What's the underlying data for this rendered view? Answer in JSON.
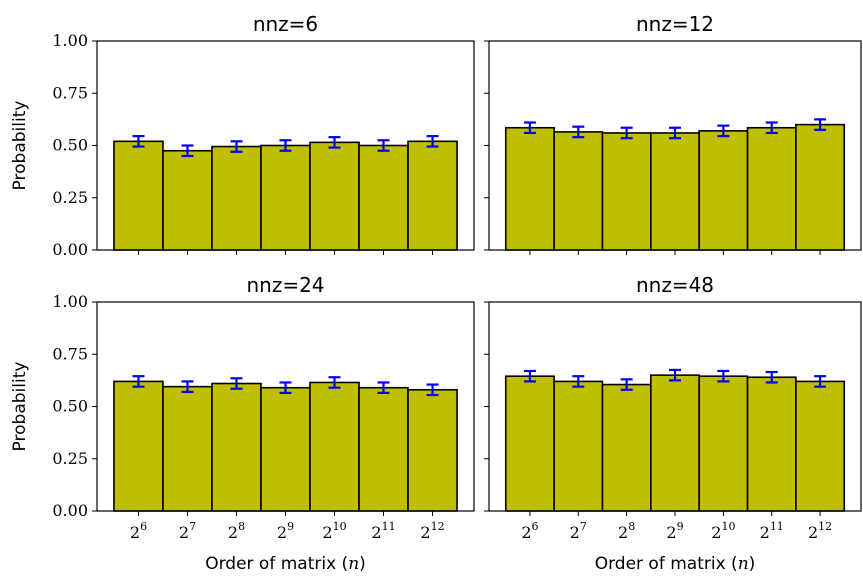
{
  "chart_data": [
    {
      "type": "bar",
      "title": "nnz=6",
      "xlabel": "",
      "ylabel": "Probability",
      "ylim": [
        0,
        1
      ],
      "yticks": [
        "0.00",
        "0.25",
        "0.50",
        "0.75",
        "1.00"
      ],
      "categories": [
        "2^6",
        "2^7",
        "2^8",
        "2^9",
        "2^10",
        "2^11",
        "2^12"
      ],
      "values": [
        0.52,
        0.475,
        0.495,
        0.5,
        0.515,
        0.5,
        0.52
      ],
      "errors": [
        0.025,
        0.025,
        0.025,
        0.025,
        0.025,
        0.025,
        0.025
      ],
      "show_xticklabels": false,
      "show_yticklabels": true
    },
    {
      "type": "bar",
      "title": "nnz=12",
      "xlabel": "",
      "ylabel": "",
      "ylim": [
        0,
        1
      ],
      "yticks": [
        "0.00",
        "0.25",
        "0.50",
        "0.75",
        "1.00"
      ],
      "categories": [
        "2^6",
        "2^7",
        "2^8",
        "2^9",
        "2^10",
        "2^11",
        "2^12"
      ],
      "values": [
        0.585,
        0.565,
        0.56,
        0.56,
        0.57,
        0.585,
        0.6
      ],
      "errors": [
        0.025,
        0.025,
        0.025,
        0.025,
        0.025,
        0.025,
        0.025
      ],
      "show_xticklabels": false,
      "show_yticklabels": false
    },
    {
      "type": "bar",
      "title": "nnz=24",
      "xlabel": "Order of matrix (n)",
      "ylabel": "Probability",
      "ylim": [
        0,
        1
      ],
      "yticks": [
        "0.00",
        "0.25",
        "0.50",
        "0.75",
        "1.00"
      ],
      "categories": [
        "2^6",
        "2^7",
        "2^8",
        "2^9",
        "2^10",
        "2^11",
        "2^12"
      ],
      "values": [
        0.62,
        0.595,
        0.61,
        0.59,
        0.615,
        0.59,
        0.58
      ],
      "errors": [
        0.025,
        0.025,
        0.025,
        0.025,
        0.025,
        0.025,
        0.025
      ],
      "show_xticklabels": true,
      "show_yticklabels": true
    },
    {
      "type": "bar",
      "title": "nnz=48",
      "xlabel": "Order of matrix (n)",
      "ylabel": "",
      "ylim": [
        0,
        1
      ],
      "yticks": [
        "0.00",
        "0.25",
        "0.50",
        "0.75",
        "1.00"
      ],
      "categories": [
        "2^6",
        "2^7",
        "2^8",
        "2^9",
        "2^10",
        "2^11",
        "2^12"
      ],
      "values": [
        0.645,
        0.62,
        0.605,
        0.65,
        0.645,
        0.64,
        0.62
      ],
      "errors": [
        0.025,
        0.025,
        0.025,
        0.025,
        0.025,
        0.025,
        0.025
      ],
      "show_xticklabels": true,
      "show_yticklabels": false
    }
  ],
  "colors": {
    "bar_fill": "#bfbf00",
    "bar_edge": "#000000",
    "error_bar": "#0000ff"
  }
}
